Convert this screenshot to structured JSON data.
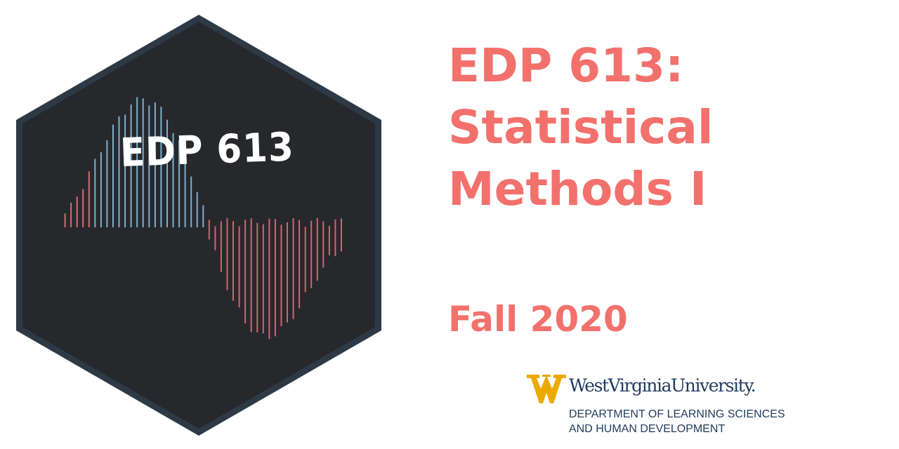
{
  "hex_sticker": {
    "title": "EDP 613",
    "colors": {
      "border": "#2d3a45",
      "fill": "#27282c",
      "positive": "#86bee0",
      "negative": "#e8737f"
    }
  },
  "course": {
    "title_lines": [
      "EDP 613:",
      "Statistical",
      "Methods I"
    ],
    "term": "Fall 2020",
    "color": "#f2716c"
  },
  "logo": {
    "university": "WestVirginiaUniversity.",
    "department_lines": [
      "DEPARTMENT OF LEARNING SCIENCES",
      "AND HUMAN DEVELOPMENT"
    ],
    "colors": {
      "gold": "#eaaa00",
      "navy": "#1f3a5c"
    }
  }
}
